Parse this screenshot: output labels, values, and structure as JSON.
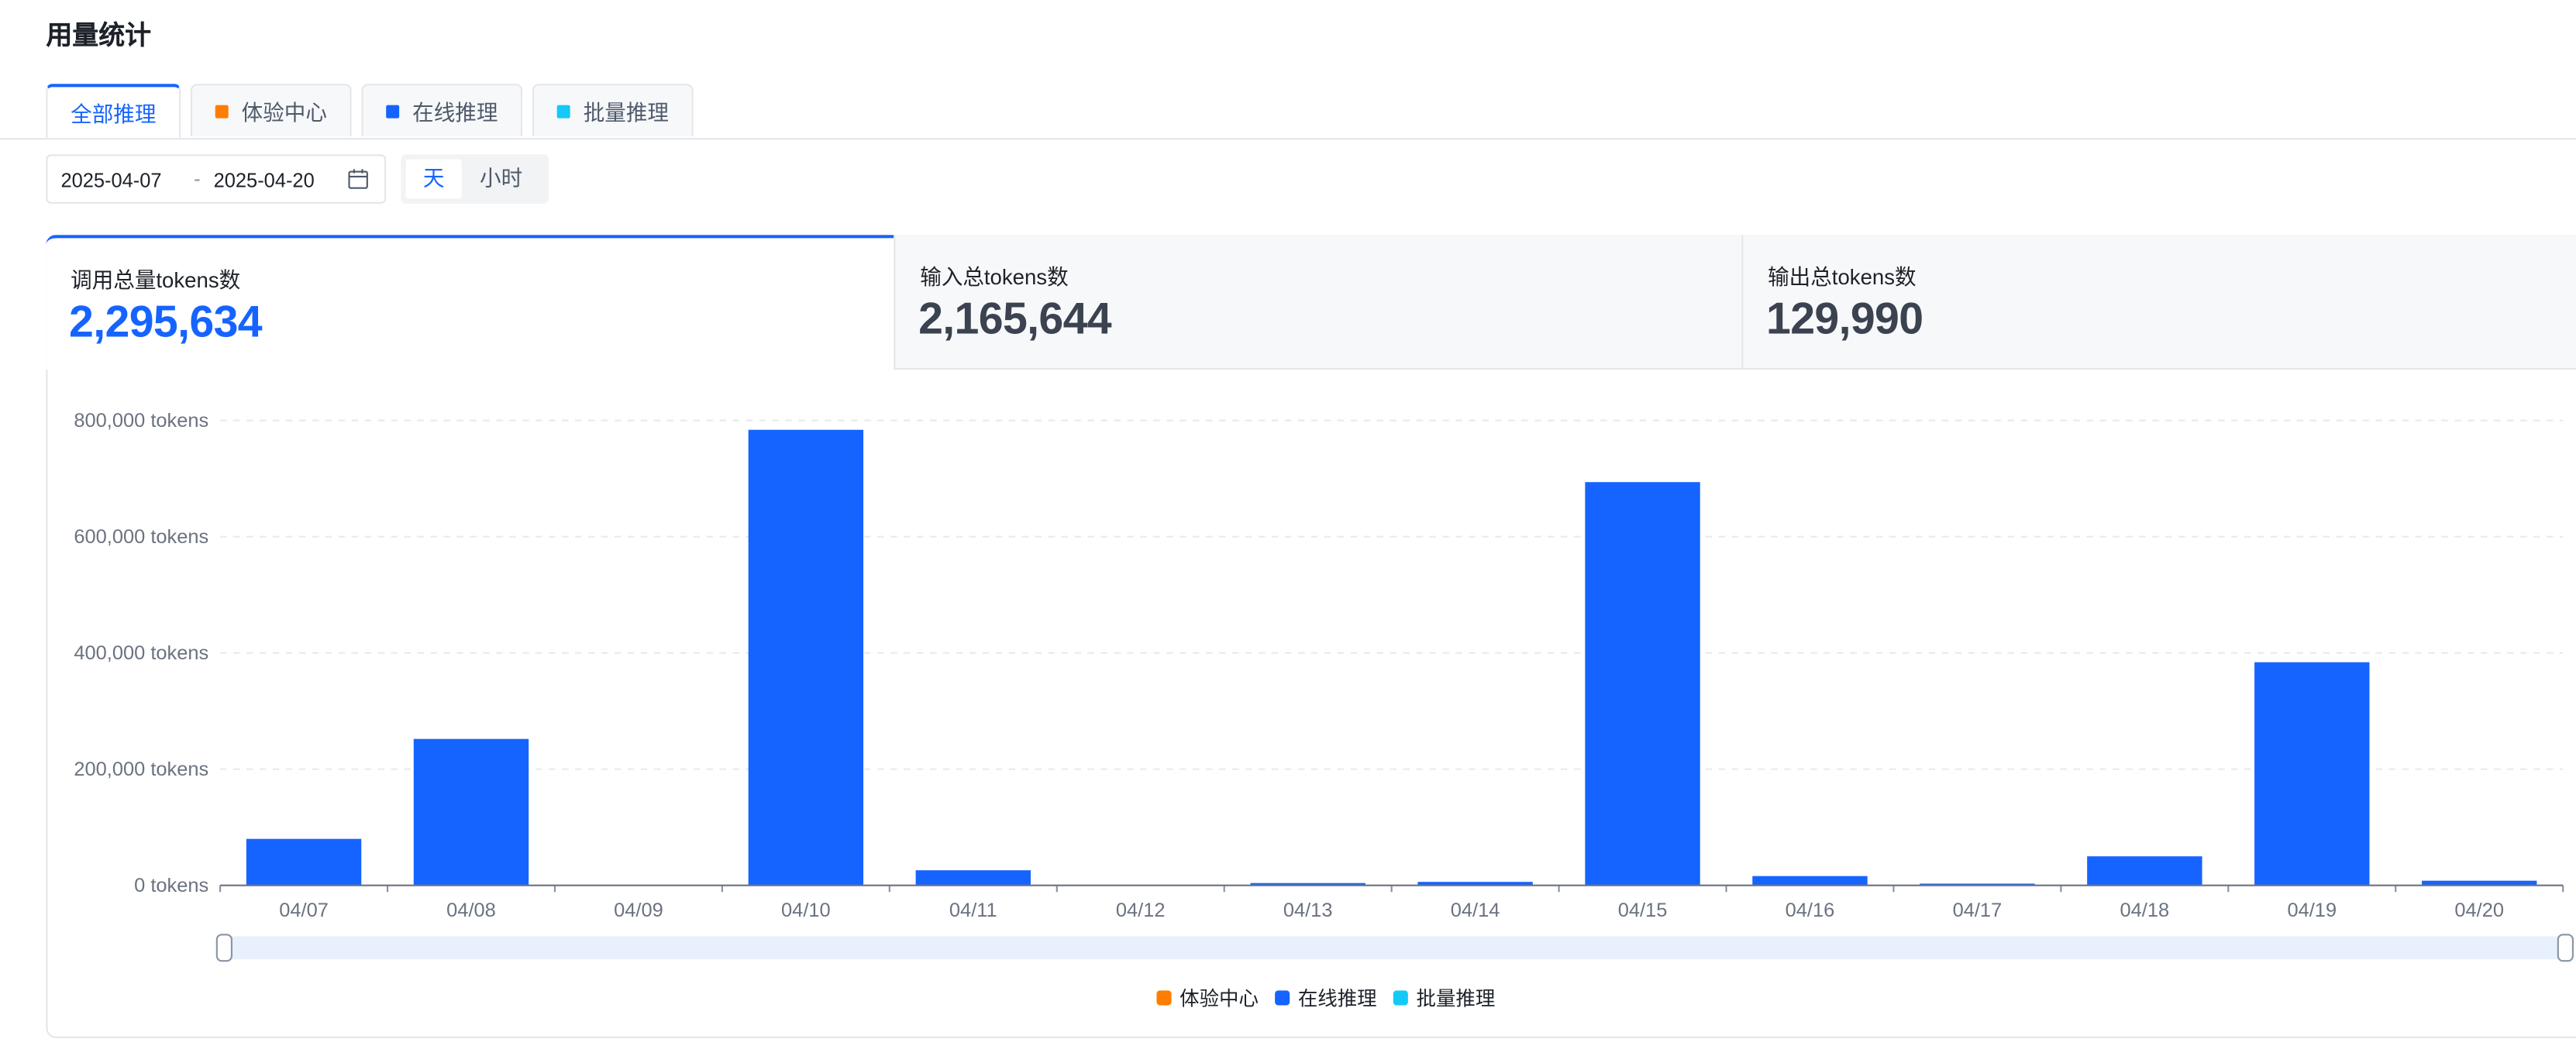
{
  "page_title": "用量统计",
  "tabs": [
    {
      "label": "全部推理",
      "color": "",
      "active": true
    },
    {
      "label": "体验中心",
      "color": "#ff7d00",
      "active": false
    },
    {
      "label": "在线推理",
      "color": "#1664ff",
      "active": false
    },
    {
      "label": "批量推理",
      "color": "#14c9f7",
      "active": false
    }
  ],
  "filters": {
    "start_date": "2025-04-07",
    "separator": "-",
    "end_date": "2025-04-20",
    "calendar_icon": "calendar-icon",
    "granularity": [
      {
        "label": "天",
        "selected": true
      },
      {
        "label": "小时",
        "selected": false
      }
    ]
  },
  "metrics": [
    {
      "label": "调用总量tokens数",
      "value": "2,295,634",
      "active": true
    },
    {
      "label": "输入总tokens数",
      "value": "2,165,644",
      "active": false
    },
    {
      "label": "输出总tokens数",
      "value": "129,990",
      "active": false
    }
  ],
  "colors": {
    "accent": "#1664ff",
    "experience": "#ff7d00",
    "online": "#1664ff",
    "batch": "#14c9f7"
  },
  "chart_data": {
    "type": "bar",
    "categories": [
      "04/07",
      "04/08",
      "04/09",
      "04/10",
      "04/11",
      "04/12",
      "04/13",
      "04/14",
      "04/15",
      "04/16",
      "04/17",
      "04/18",
      "04/19",
      "04/20"
    ],
    "series": [
      {
        "name": "体验中心",
        "color": "#ff7d00",
        "values": [
          0,
          0,
          0,
          0,
          0,
          0,
          0,
          0,
          0,
          0,
          0,
          0,
          0,
          0
        ]
      },
      {
        "name": "在线推理",
        "color": "#1664ff",
        "values": [
          80000,
          252000,
          0,
          784000,
          26000,
          0,
          4000,
          6000,
          694000,
          16000,
          3000,
          50000,
          384000,
          8000
        ]
      },
      {
        "name": "批量推理",
        "color": "#14c9f7",
        "values": [
          0,
          0,
          0,
          0,
          0,
          0,
          0,
          0,
          0,
          0,
          0,
          0,
          0,
          0
        ]
      }
    ],
    "y_ticks": [
      "0 tokens",
      "200,000 tokens",
      "400,000 tokens",
      "600,000 tokens",
      "800,000 tokens"
    ],
    "ylim": [
      0,
      800000
    ],
    "grid": true,
    "legend_position": "bottom-center",
    "has_range_slider": true
  }
}
